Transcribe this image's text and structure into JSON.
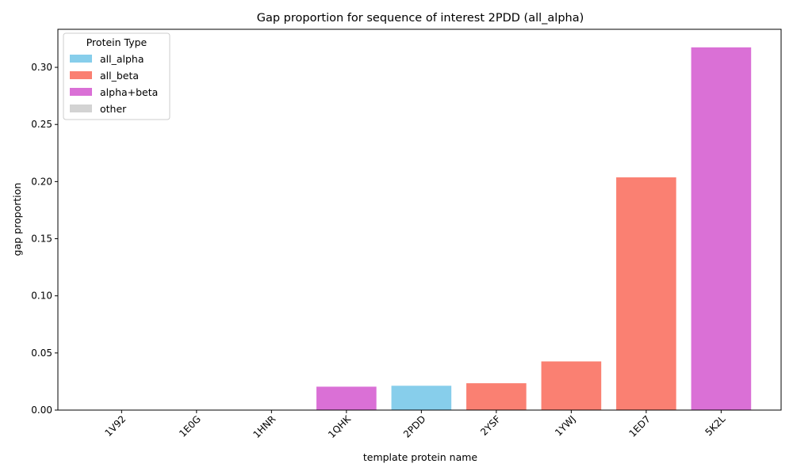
{
  "chart_data": {
    "type": "bar",
    "title": "Gap proportion for sequence of interest 2PDD (all_alpha)",
    "xlabel": "template protein name",
    "ylabel": "gap proportion",
    "categories": [
      "1V92",
      "1E0G",
      "1HNR",
      "1QHK",
      "2PDD",
      "2YSF",
      "1YWJ",
      "1ED7",
      "5K2L"
    ],
    "values": [
      0.0,
      0.0,
      0.0,
      0.0205,
      0.0213,
      0.0235,
      0.0426,
      0.2037,
      0.3175
    ],
    "bar_types": [
      "all_beta",
      "all_beta",
      "all_beta",
      "alpha+beta",
      "all_alpha",
      "all_beta",
      "all_beta",
      "all_beta",
      "alpha+beta"
    ],
    "ylim": [
      0,
      0.3333
    ],
    "yticks": [
      0.0,
      0.05,
      0.1,
      0.15,
      0.2,
      0.25,
      0.3
    ],
    "ytick_labels": [
      "0.00",
      "0.05",
      "0.10",
      "0.15",
      "0.20",
      "0.25",
      "0.30"
    ],
    "legend": {
      "title": "Protein Type",
      "placement": "top-left",
      "entries": [
        {
          "label": "all_alpha",
          "color": "#87ceeb"
        },
        {
          "label": "all_beta",
          "color": "#fa8072"
        },
        {
          "label": "alpha+beta",
          "color": "#da70d6"
        },
        {
          "label": "other",
          "color": "#d3d3d3"
        }
      ]
    }
  }
}
